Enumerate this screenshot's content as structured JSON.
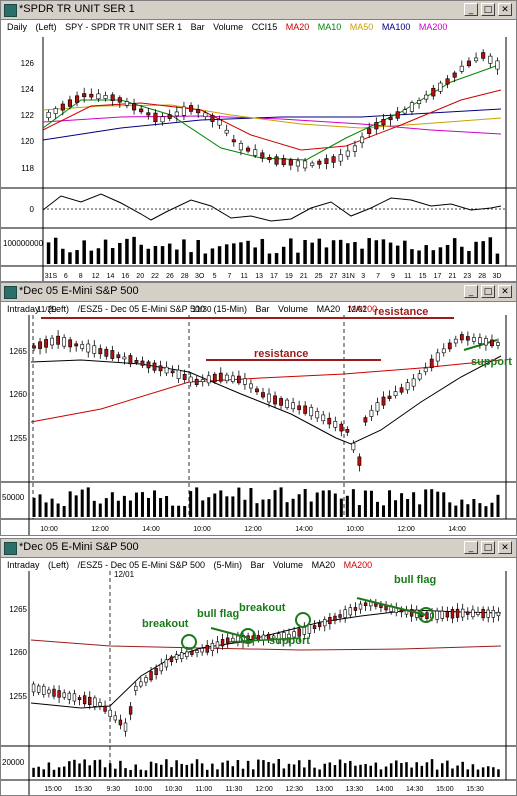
{
  "windows": [
    {
      "title": "*SPDR TR UNIT SER 1",
      "header": [
        {
          "text": "Daily",
          "color": "#000000"
        },
        {
          "text": "(Left)",
          "color": "#000000"
        },
        {
          "text": "SPY - SPDR TR UNIT SER 1",
          "color": "#000000"
        },
        {
          "text": "Bar",
          "color": "#000000"
        },
        {
          "text": "Volume",
          "color": "#000000"
        },
        {
          "text": "CCI15",
          "color": "#000000"
        },
        {
          "text": "MA20",
          "color": "#cc0000"
        },
        {
          "text": "MA10",
          "color": "#008800"
        },
        {
          "text": "MA50",
          "color": "#c8a000"
        },
        {
          "text": "MA100",
          "color": "#000080"
        },
        {
          "text": "MA200",
          "color": "#cc00cc"
        }
      ],
      "y_ticks": [
        "126",
        "124",
        "122",
        "120",
        "118"
      ],
      "cci_tick": "0",
      "volume_tick": "100000000",
      "x_ticks": [
        "31S",
        "6",
        "8",
        "12",
        "14",
        "16",
        "20",
        "22",
        "26",
        "28",
        "3O",
        "5",
        "7",
        "11",
        "13",
        "17",
        "19",
        "21",
        "25",
        "27",
        "31N",
        "3",
        "7",
        "9",
        "11",
        "15",
        "17",
        "21",
        "23",
        "28",
        "3D"
      ],
      "colors": {
        "ma20": "#cc0000",
        "ma10": "#008800",
        "ma50": "#c8a000",
        "ma100": "#000080",
        "ma200": "#cc00cc",
        "down": "#cc0000"
      }
    },
    {
      "title": "*Dec 05  E-Mini S&P 500",
      "header": [
        {
          "text": "Intraday",
          "color": "#000000"
        },
        {
          "text": "(Left)",
          "color": "#000000"
        },
        {
          "text": "/ESZ5 - Dec 05 E-Mini S&P 500",
          "color": "#000000"
        },
        {
          "text": "(15-Min)",
          "color": "#000000"
        },
        {
          "text": "Bar",
          "color": "#000000"
        },
        {
          "text": "Volume",
          "color": "#000000"
        },
        {
          "text": "MA20",
          "color": "#000000"
        },
        {
          "text": "MA200",
          "color": "#cc0000"
        }
      ],
      "dates": [
        "11/29",
        "11/30",
        "12/01"
      ],
      "y_ticks": [
        "1265",
        "1260",
        "1255"
      ],
      "volume_tick": "50000",
      "x_ticks": [
        "10:00",
        "12:00",
        "14:00",
        "10:00",
        "12:00",
        "14:00",
        "10:00",
        "12:00",
        "14:00"
      ],
      "annotations": {
        "resistance_1": "resistance",
        "resistance_2": "resistance",
        "support": "support"
      }
    },
    {
      "title": "*Dec 05  E-Mini S&P 500",
      "header": [
        {
          "text": "Intraday",
          "color": "#000000"
        },
        {
          "text": "(Left)",
          "color": "#000000"
        },
        {
          "text": "/ESZ5 - Dec 05 E-Mini S&P 500",
          "color": "#000000"
        },
        {
          "text": "(5-Min)",
          "color": "#000000"
        },
        {
          "text": "Bar",
          "color": "#000000"
        },
        {
          "text": "Volume",
          "color": "#000000"
        },
        {
          "text": "MA20",
          "color": "#000000"
        },
        {
          "text": "MA200",
          "color": "#cc0000"
        }
      ],
      "dates": [
        "12/01"
      ],
      "y_ticks": [
        "1265",
        "1260",
        "1255"
      ],
      "volume_tick": "20000",
      "x_ticks": [
        "15:00",
        "15:30",
        "9:30",
        "10:00",
        "10:30",
        "11:00",
        "11:30",
        "12:00",
        "12:30",
        "13:00",
        "13:30",
        "14:00",
        "14:30",
        "15:00",
        "15:30"
      ],
      "annotations": {
        "breakout_1": "breakout",
        "bull_flag_1": "bull flag",
        "breakout_2": "breakout",
        "support": "support",
        "bull_flag_2": "bull flag"
      }
    }
  ]
}
